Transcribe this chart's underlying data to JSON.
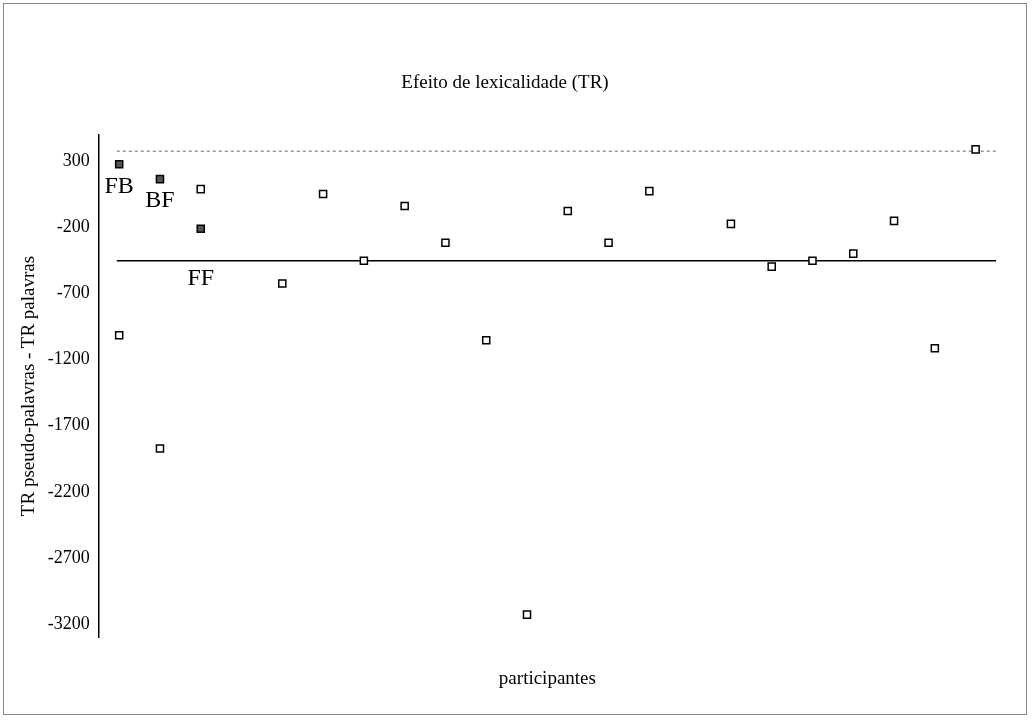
{
  "chart_data": {
    "type": "scatter",
    "title": "Efeito de lexicalidade (TR)",
    "xlabel": "participantes",
    "ylabel": "TR pseudo-palavras - TR palavras",
    "categories": [
      null,
      null,
      null,
      null,
      null,
      null,
      null,
      null,
      null,
      null,
      null,
      null,
      null,
      null,
      null,
      null,
      null,
      null,
      null,
      null,
      null,
      null
    ],
    "ylim": [
      -3300,
      500
    ],
    "yticks": [
      -3200,
      -2700,
      -2200,
      -1700,
      -1200,
      -700,
      -200,
      300
    ],
    "tick_labels": "y",
    "grid": false,
    "legend": false,
    "marker": "square",
    "series": [
      {
        "color": "#ffffff",
        "values": [
          -1016,
          -1873,
          89,
          null,
          -625,
          52,
          -452,
          -38,
          -317,
          -1054,
          -3129,
          -76,
          -317,
          74,
          null,
          -174,
          -497,
          -452,
          -399,
          -151,
          -1114,
          390
        ]
      },
      {
        "color": "#555555",
        "values": [
          277,
          165,
          -211,
          null,
          null,
          null,
          null,
          null,
          null,
          null,
          null,
          null,
          null,
          null,
          null,
          null,
          null,
          null,
          null,
          null,
          null,
          null
        ]
      }
    ],
    "ref_lines": [
      {
        "axis": "y",
        "value": 375,
        "color": "#999999",
        "line_style": "dashed"
      },
      {
        "axis": "y",
        "value": -452,
        "color": "#000000",
        "line_style": "solid"
      }
    ],
    "annotations": [
      "FB",
      "BF",
      "FF"
    ]
  }
}
